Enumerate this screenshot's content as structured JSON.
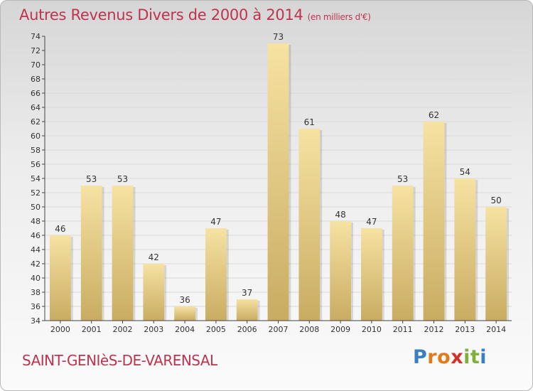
{
  "chart_data": {
    "type": "bar",
    "title": "Autres Revenus Divers de 2000 à 2014",
    "title_unit": "(en milliers d'€)",
    "categories": [
      "2000",
      "2001",
      "2002",
      "2003",
      "2004",
      "2005",
      "2006",
      "2007",
      "2008",
      "2009",
      "2010",
      "2011",
      "2012",
      "2013",
      "2014"
    ],
    "values": [
      46,
      53,
      53,
      42,
      36,
      47,
      37,
      73,
      61,
      48,
      47,
      53,
      62,
      54,
      50
    ],
    "ylim": [
      34,
      74
    ],
    "yticks": [
      34,
      36,
      38,
      40,
      42,
      44,
      46,
      48,
      50,
      52,
      54,
      56,
      58,
      60,
      62,
      64,
      66,
      68,
      70,
      72,
      74
    ],
    "grid": true,
    "bar_color_top": "#f6e2a2",
    "bar_color_bottom": "#c9ac62",
    "xlabel": "",
    "ylabel": ""
  },
  "commune": "SAINT-GENIèS-DE-VARENSAL",
  "logo": {
    "letters": [
      "P",
      "r",
      "o",
      "x",
      "i",
      "t",
      "i"
    ],
    "colors": [
      "#3a7fc0",
      "#e07a1c",
      "#e07a1c",
      "#d4302b",
      "#7fb03a",
      "#7fb03a",
      "#3a7fc0"
    ]
  }
}
